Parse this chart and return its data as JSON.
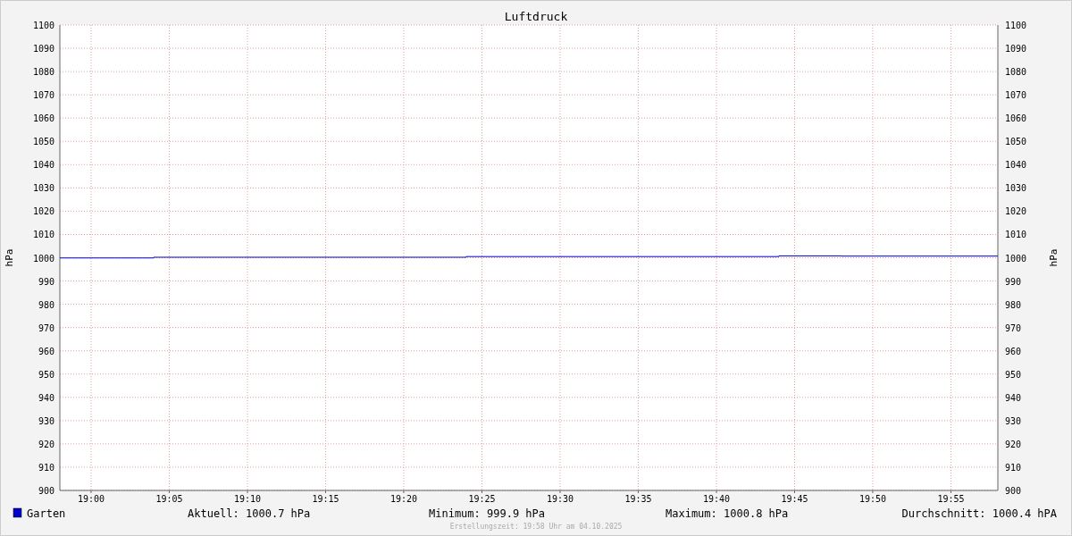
{
  "chart_data": {
    "type": "step",
    "title": "Luftdruck",
    "ylabel": "hPa",
    "y2label": "hPa",
    "x": [
      18.9667,
      19.0667,
      19.4,
      19.7333,
      19.8,
      19.9667
    ],
    "series": [
      {
        "name": "Garten",
        "color": "#0000cc",
        "values": [
          999.9,
          1000.2,
          1000.5,
          1000.8,
          1000.7,
          1000.7
        ]
      }
    ],
    "xlim": [
      18.9667,
      19.9667
    ],
    "xticks": [
      {
        "value": 19,
        "label": "19:00"
      },
      {
        "value": 19.0833,
        "label": "19:05"
      },
      {
        "value": 19.1667,
        "label": "19:10"
      },
      {
        "value": 19.25,
        "label": "19:15"
      },
      {
        "value": 19.3333,
        "label": "19:20"
      },
      {
        "value": 19.4167,
        "label": "19:25"
      },
      {
        "value": 19.5,
        "label": "19:30"
      },
      {
        "value": 19.5833,
        "label": "19:35"
      },
      {
        "value": 19.6667,
        "label": "19:40"
      },
      {
        "value": 19.75,
        "label": "19:45"
      },
      {
        "value": 19.8333,
        "label": "19:50"
      },
      {
        "value": 19.9167,
        "label": "19:55"
      }
    ],
    "ylim": [
      900,
      1100
    ],
    "yticks": [
      900,
      910,
      920,
      930,
      940,
      950,
      960,
      970,
      980,
      990,
      1000,
      1010,
      1020,
      1030,
      1040,
      1050,
      1060,
      1070,
      1080,
      1090,
      1100
    ],
    "y2lim": [
      900,
      1100
    ],
    "y2ticks": [
      900,
      910,
      920,
      930,
      940,
      950,
      960,
      970,
      980,
      990,
      1000,
      1010,
      1020,
      1030,
      1040,
      1050,
      1060,
      1070,
      1080,
      1090,
      1100
    ],
    "grid": true,
    "legend": "bottom",
    "annotations": [
      "Aktuell: 1000.7 hPa",
      "Minimum: 999.9 hPa",
      "Maximum: 1000.8 hPa",
      "Durchschnitt: 1000.4 hPA",
      "Erstellungszeit: 19:58 Uhr am 04.10.2025"
    ]
  }
}
